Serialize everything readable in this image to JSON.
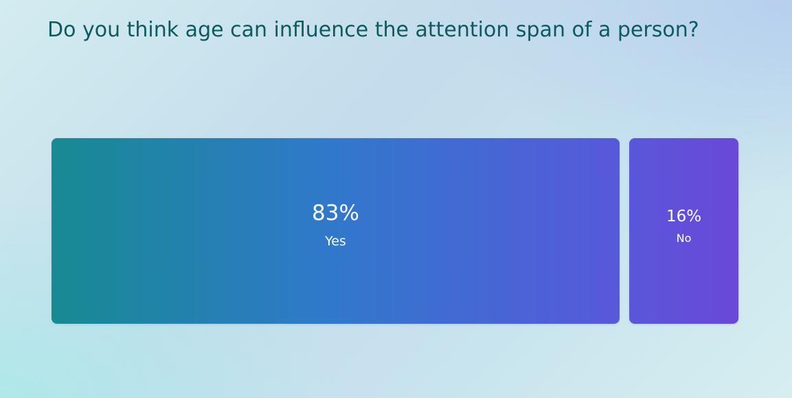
{
  "question": "Do you think age can influence the attention span of a person?",
  "chart_data": {
    "type": "bar",
    "categories": [
      "Yes",
      "No"
    ],
    "values": [
      83,
      16
    ],
    "value_labels": [
      "83%",
      "16%"
    ],
    "unit": "%",
    "xlabel": "",
    "ylabel": "",
    "grid": false,
    "legend": "none"
  },
  "colors": {
    "title": "#0d5a5f",
    "bar_gradient_start": "#178a92",
    "bar_gradient_mid": "#3a72df",
    "bar_gradient_end": "#6a48d8",
    "text_on_bar": "#ffffff"
  }
}
